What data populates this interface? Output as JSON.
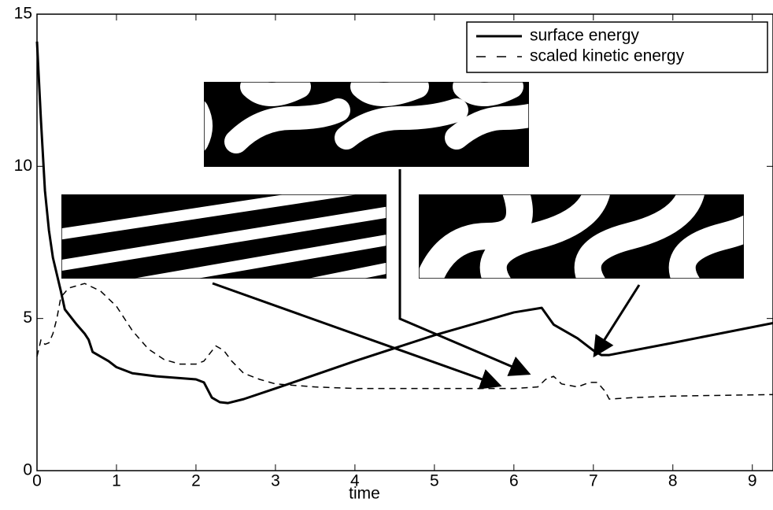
{
  "chart_data": {
    "type": "line",
    "xlabel": "time",
    "xlim": [
      0,
      9.26
    ],
    "ylim": [
      0,
      15
    ],
    "xticks": [
      0,
      1,
      2,
      3,
      4,
      5,
      6,
      7,
      8,
      9
    ],
    "yticks": [
      0,
      5,
      10,
      15
    ],
    "legend": "upper right",
    "series": [
      {
        "name": "surface energy",
        "color": "#000000",
        "style": "solid",
        "x": [
          0,
          0.05,
          0.1,
          0.15,
          0.2,
          0.3,
          0.35,
          0.5,
          0.6,
          0.65,
          0.7,
          0.9,
          1.0,
          1.2,
          1.5,
          2.0,
          2.1,
          2.2,
          2.3,
          2.4,
          2.6,
          3.0,
          4.0,
          5.0,
          6.0,
          6.35,
          6.5,
          6.8,
          6.9,
          7.0,
          7.1,
          7.2,
          8.0,
          9.26
        ],
        "values": [
          14.1,
          11.5,
          9.2,
          7.9,
          7.0,
          5.9,
          5.3,
          4.8,
          4.5,
          4.3,
          3.9,
          3.6,
          3.4,
          3.2,
          3.1,
          3.0,
          2.9,
          2.4,
          2.25,
          2.22,
          2.35,
          2.7,
          3.6,
          4.45,
          5.2,
          5.35,
          4.8,
          4.35,
          4.15,
          3.95,
          3.8,
          3.8,
          4.2,
          4.85
        ]
      },
      {
        "name": "scaled kinetic energy",
        "color": "#000000",
        "style": "dashed",
        "x": [
          0,
          0.05,
          0.1,
          0.15,
          0.2,
          0.25,
          0.3,
          0.4,
          0.6,
          0.8,
          1.0,
          1.2,
          1.4,
          1.6,
          1.8,
          2.0,
          2.1,
          2.25,
          2.35,
          2.45,
          2.6,
          2.8,
          3.0,
          3.5,
          4.0,
          5.0,
          6.0,
          6.3,
          6.4,
          6.5,
          6.6,
          6.8,
          6.95,
          7.05,
          7.15,
          7.2,
          7.5,
          8.0,
          9.26
        ],
        "values": [
          3.75,
          4.3,
          4.15,
          4.2,
          4.5,
          5.0,
          5.7,
          6.0,
          6.15,
          5.9,
          5.4,
          4.6,
          4.0,
          3.65,
          3.5,
          3.5,
          3.6,
          4.1,
          3.95,
          3.6,
          3.2,
          3.0,
          2.85,
          2.75,
          2.7,
          2.7,
          2.7,
          2.75,
          3.0,
          3.1,
          2.85,
          2.75,
          2.9,
          2.9,
          2.6,
          2.35,
          2.4,
          2.45,
          2.5
        ]
      }
    ]
  }
}
